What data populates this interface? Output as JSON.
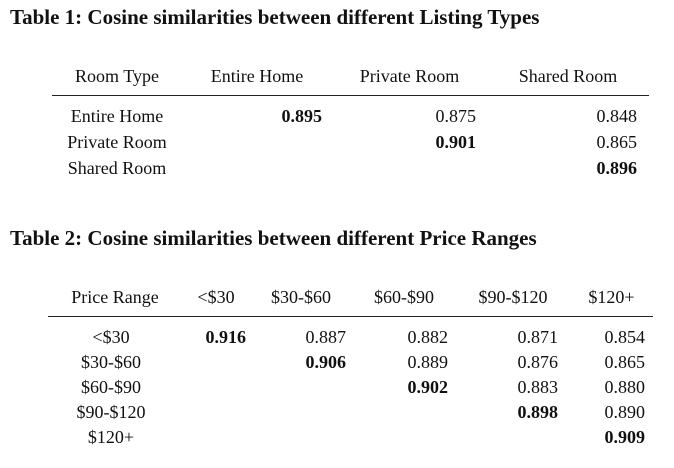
{
  "table1": {
    "caption": "Table 1: Cosine similarities between different Listing Types",
    "headers": [
      "Room Type",
      "Entire Home",
      "Private Room",
      "Shared Room"
    ],
    "rows": [
      [
        "Entire Home",
        "0.895",
        "0.875",
        "0.848"
      ],
      [
        "Private Room",
        "",
        "0.901",
        "0.865"
      ],
      [
        "Shared Room",
        "",
        "",
        "0.896"
      ]
    ]
  },
  "table2": {
    "caption": "Table 2: Cosine similarities between different Price Ranges",
    "headers": [
      "Price Range",
      "<$30",
      "$30-$60",
      "$60-$90",
      "$90-$120",
      "$120+"
    ],
    "rows": [
      [
        "<$30",
        "0.916",
        "0.887",
        "0.882",
        "0.871",
        "0.854"
      ],
      [
        "$30-$60",
        "",
        "0.906",
        "0.889",
        "0.876",
        "0.865"
      ],
      [
        "$60-$90",
        "",
        "",
        "0.902",
        "0.883",
        "0.880"
      ],
      [
        "$90-$120",
        "",
        "",
        "",
        "0.898",
        "0.890"
      ],
      [
        "$120+",
        "",
        "",
        "",
        "",
        "0.909"
      ]
    ]
  }
}
